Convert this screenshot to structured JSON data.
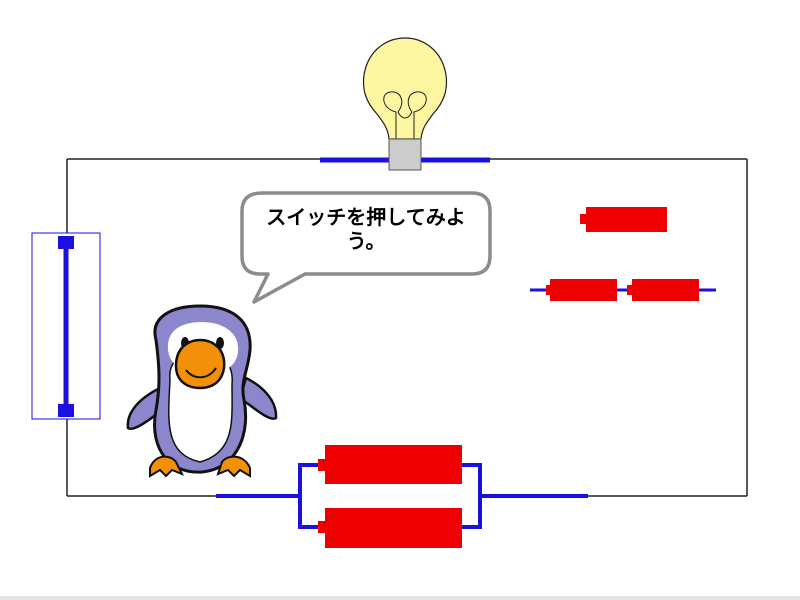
{
  "speech": {
    "text": "スイッチを押してみよう。"
  },
  "colors": {
    "wire": "#222222",
    "conductor": "#1a10e0",
    "battery": "#ee0000",
    "bulb_glass": "#fdf6a0",
    "bulb_base": "#cccccc",
    "penguin_body": "#8c86cc",
    "penguin_beak": "#f2900a"
  },
  "components": {
    "bulb": "light-bulb",
    "switch": "knife-switch",
    "batteries_parallel": 2,
    "batteries_spare": 3
  }
}
